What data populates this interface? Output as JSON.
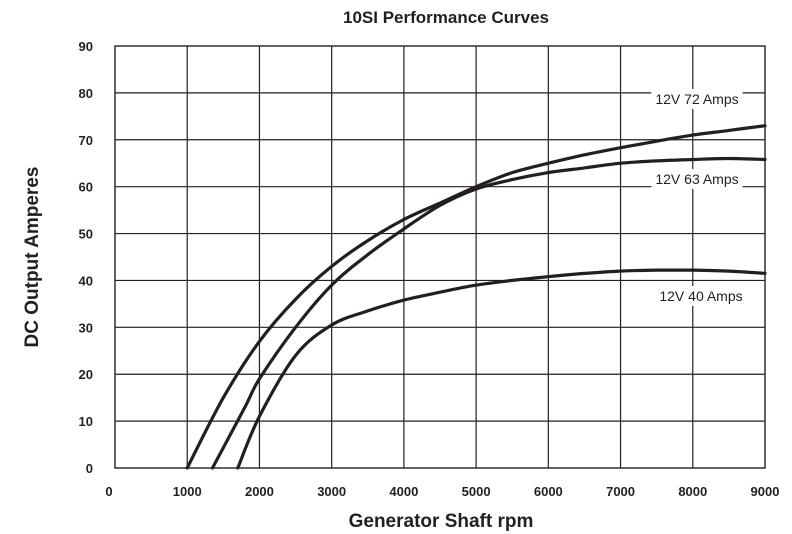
{
  "chart_data": {
    "type": "line",
    "title": "10SI Performance Curves",
    "xlabel": "Generator Shaft rpm",
    "ylabel": "DC Output Amperes",
    "xlim": [
      0,
      9000
    ],
    "ylim": [
      0,
      90
    ],
    "x_ticks": [
      "0",
      "1000",
      "2000",
      "3000",
      "4000",
      "5000",
      "6000",
      "7000",
      "8000",
      "9000"
    ],
    "y_ticks": [
      "0",
      "10",
      "20",
      "30",
      "40",
      "50",
      "60",
      "70",
      "80",
      "90"
    ],
    "grid": true,
    "series": [
      {
        "name": "12V 72 Amps",
        "x": [
          1000,
          1500,
          2000,
          2500,
          3000,
          3500,
          4000,
          4500,
          5000,
          5500,
          6000,
          6500,
          7000,
          7500,
          8000,
          8500,
          9000
        ],
        "y": [
          0,
          15,
          27,
          36,
          43,
          48.5,
          53,
          56.5,
          60,
          63,
          65,
          66.8,
          68.3,
          69.7,
          71,
          72,
          73
        ]
      },
      {
        "name": "12V 63 Amps",
        "x": [
          1350,
          1800,
          2000,
          2500,
          3000,
          3500,
          4000,
          4500,
          5000,
          5500,
          6000,
          6500,
          7000,
          7500,
          8000,
          8500,
          9000
        ],
        "y": [
          0,
          13,
          19,
          30,
          39,
          45.5,
          51,
          56,
          59.5,
          61.5,
          63,
          64,
          65,
          65.5,
          65.8,
          66,
          65.8
        ]
      },
      {
        "name": "12V 40 Amps",
        "x": [
          1700,
          2000,
          2500,
          3000,
          3500,
          4000,
          4500,
          5000,
          5500,
          6000,
          6500,
          7000,
          7500,
          8000,
          8500,
          9000
        ],
        "y": [
          0,
          11,
          24,
          30.5,
          33.5,
          35.8,
          37.5,
          39,
          40,
          40.8,
          41.5,
          42,
          42.2,
          42.2,
          42,
          41.5
        ]
      }
    ]
  }
}
